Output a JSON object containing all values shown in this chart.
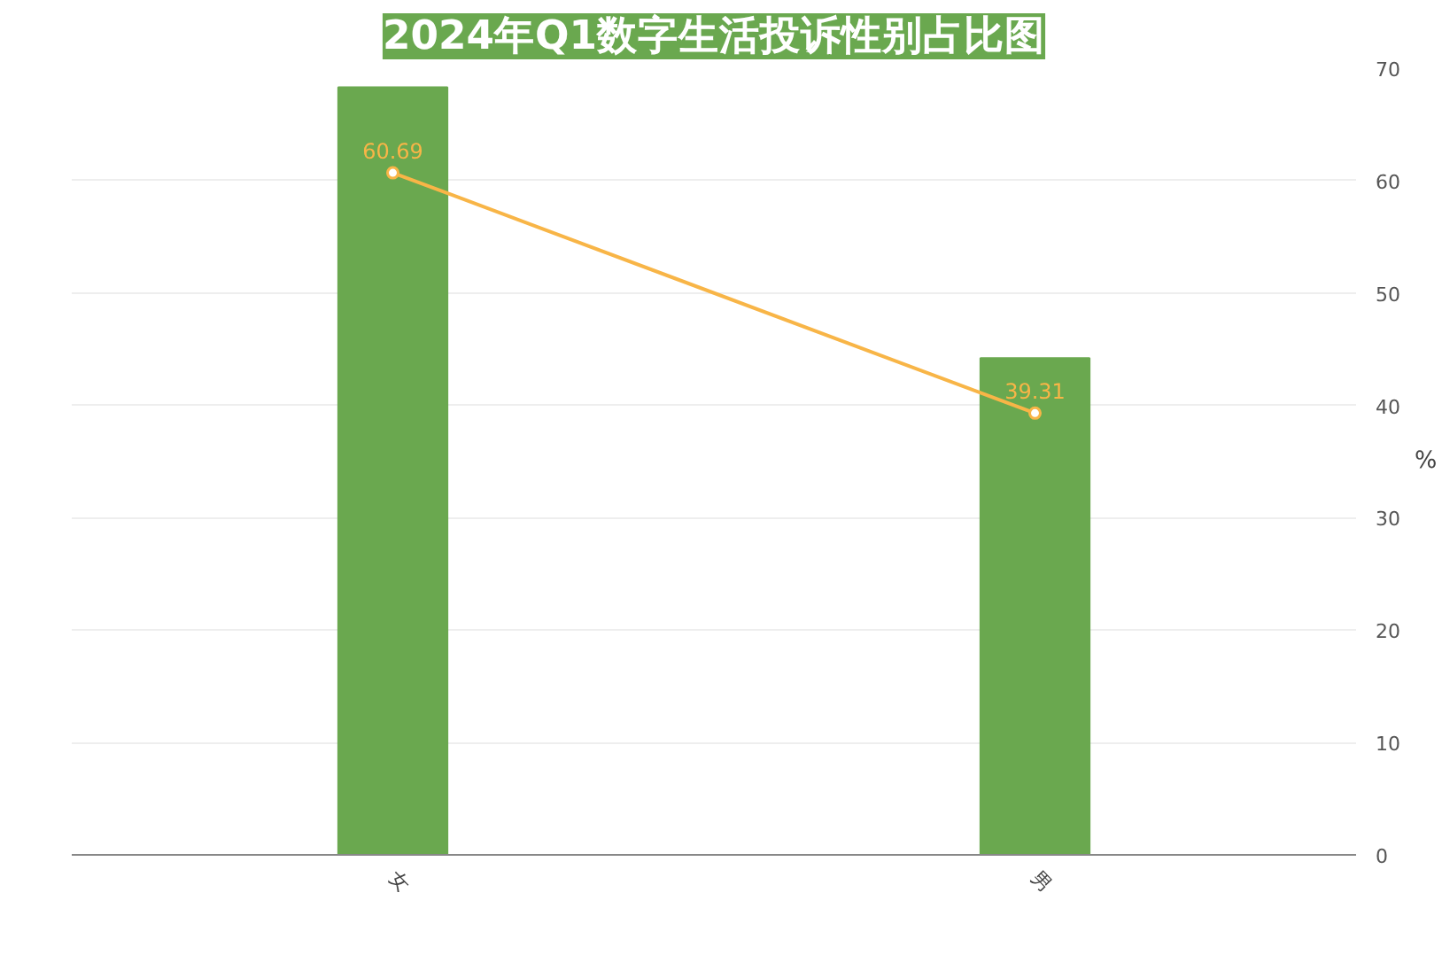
{
  "chart_data": {
    "type": "bar",
    "title": "2024年Q1数字生活投诉性别占比图",
    "ylabel": "%",
    "categories": [
      "女",
      "男"
    ],
    "series": [
      {
        "color": "#6aa84f",
        "values": [
          68.3,
          44.2
        ]
      },
      {
        "type": "line",
        "color": "#f8b547",
        "values": [
          60.69,
          39.31
        ],
        "value_labels": [
          "60.69",
          "39.31"
        ]
      }
    ],
    "ylim": [
      0,
      70
    ],
    "yticks": [
      0,
      10,
      20,
      30,
      40,
      50,
      60,
      70
    ],
    "grid": "y",
    "marker": "circle",
    "line_style": "solid"
  }
}
